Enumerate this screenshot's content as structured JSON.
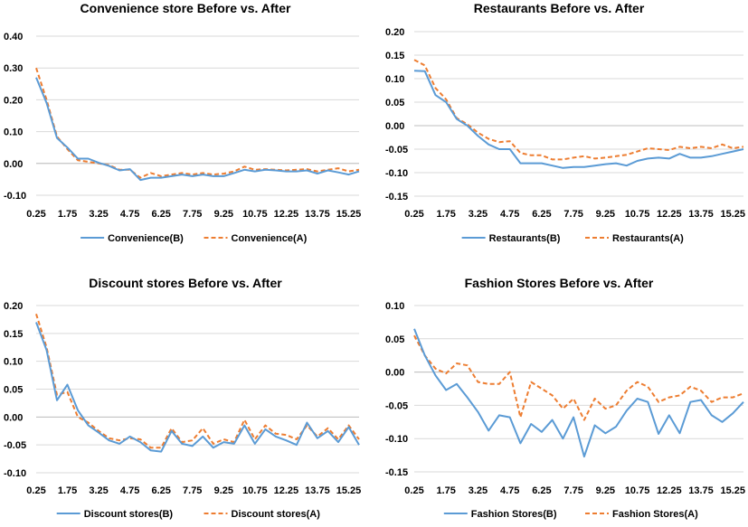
{
  "colors": {
    "before": "#5B9BD5",
    "after": "#ED7D31",
    "grid": "#D9D9D9",
    "axis": "#BFBFBF",
    "text": "#000000"
  },
  "chart_data": [
    {
      "type": "line",
      "title": "Convenience store Before vs. After",
      "yticks": [
        "0.40",
        "0.30",
        "0.20",
        "0.10",
        "0.00",
        "-0.10"
      ],
      "ylim": [
        -0.1,
        0.4
      ],
      "x": [
        0.25,
        0.75,
        1.25,
        1.75,
        2.25,
        2.75,
        3.25,
        3.75,
        4.25,
        4.75,
        5.25,
        5.75,
        6.25,
        6.75,
        7.25,
        7.75,
        8.25,
        8.75,
        9.25,
        9.75,
        10.25,
        10.75,
        11.25,
        11.75,
        12.25,
        12.75,
        13.25,
        13.75,
        14.25,
        14.75,
        15.25,
        15.75
      ],
      "xticks": [
        "0.25",
        "1.75",
        "3.25",
        "4.75",
        "6.25",
        "7.75",
        "9.25",
        "10.75",
        "12.25",
        "13.75",
        "15.25"
      ],
      "series": [
        {
          "name": "Convenience(B)",
          "values": [
            0.27,
            0.19,
            0.08,
            0.05,
            0.015,
            0.015,
            0.002,
            -0.008,
            -0.022,
            -0.018,
            -0.052,
            -0.045,
            -0.045,
            -0.04,
            -0.035,
            -0.04,
            -0.035,
            -0.04,
            -0.04,
            -0.03,
            -0.02,
            -0.025,
            -0.02,
            -0.022,
            -0.025,
            -0.025,
            -0.022,
            -0.032,
            -0.022,
            -0.028,
            -0.035,
            -0.025
          ]
        },
        {
          "name": "Convenience(A)",
          "values": [
            0.3,
            0.2,
            0.085,
            0.045,
            0.01,
            0.005,
            0.0,
            -0.005,
            -0.02,
            -0.02,
            -0.045,
            -0.03,
            -0.04,
            -0.035,
            -0.03,
            -0.035,
            -0.03,
            -0.035,
            -0.032,
            -0.025,
            -0.01,
            -0.02,
            -0.018,
            -0.02,
            -0.022,
            -0.02,
            -0.018,
            -0.025,
            -0.02,
            -0.015,
            -0.025,
            -0.02
          ]
        }
      ]
    },
    {
      "type": "line",
      "title": "Restaurants Before vs. After",
      "yticks": [
        "0.20",
        "0.15",
        "0.10",
        "0.05",
        "0.00",
        "-0.05",
        "-0.10",
        "-0.15"
      ],
      "ylim": [
        -0.15,
        0.2
      ],
      "x": [
        0.25,
        0.75,
        1.25,
        1.75,
        2.25,
        2.75,
        3.25,
        3.75,
        4.25,
        4.75,
        5.25,
        5.75,
        6.25,
        6.75,
        7.25,
        7.75,
        8.25,
        8.75,
        9.25,
        9.75,
        10.25,
        10.75,
        11.25,
        11.75,
        12.25,
        12.75,
        13.25,
        13.75,
        14.25,
        14.75,
        15.25,
        15.75
      ],
      "xticks": [
        "0.25",
        "1.75",
        "3.25",
        "4.75",
        "6.25",
        "7.75",
        "9.25",
        "10.75",
        "12.25",
        "13.75",
        "15.25"
      ],
      "series": [
        {
          "name": "Restaurants(B)",
          "values": [
            0.117,
            0.116,
            0.065,
            0.05,
            0.014,
            0.0,
            -0.022,
            -0.04,
            -0.05,
            -0.05,
            -0.08,
            -0.08,
            -0.08,
            -0.085,
            -0.09,
            -0.088,
            -0.088,
            -0.085,
            -0.082,
            -0.08,
            -0.085,
            -0.075,
            -0.07,
            -0.068,
            -0.07,
            -0.06,
            -0.068,
            -0.068,
            -0.065,
            -0.06,
            -0.055,
            -0.05
          ]
        },
        {
          "name": "Restaurants(A)",
          "values": [
            0.14,
            0.128,
            0.08,
            0.056,
            0.016,
            0.003,
            -0.015,
            -0.028,
            -0.035,
            -0.033,
            -0.058,
            -0.063,
            -0.063,
            -0.072,
            -0.072,
            -0.068,
            -0.065,
            -0.07,
            -0.068,
            -0.065,
            -0.062,
            -0.055,
            -0.048,
            -0.05,
            -0.052,
            -0.045,
            -0.048,
            -0.045,
            -0.048,
            -0.04,
            -0.048,
            -0.045
          ]
        }
      ]
    },
    {
      "type": "line",
      "title": "Discount stores Before vs. After",
      "yticks": [
        "0.20",
        "0.15",
        "0.10",
        "0.05",
        "0.00",
        "-0.05",
        "-0.10"
      ],
      "ylim": [
        -0.1,
        0.2
      ],
      "x": [
        0.25,
        0.75,
        1.25,
        1.75,
        2.25,
        2.75,
        3.25,
        3.75,
        4.25,
        4.75,
        5.25,
        5.75,
        6.25,
        6.75,
        7.25,
        7.75,
        8.25,
        8.75,
        9.25,
        9.75,
        10.25,
        10.75,
        11.25,
        11.75,
        12.25,
        12.75,
        13.25,
        13.75,
        14.25,
        14.75,
        15.25,
        15.75
      ],
      "xticks": [
        "0.25",
        "1.75",
        "3.25",
        "4.75",
        "6.25",
        "7.75",
        "9.25",
        "10.75",
        "12.25",
        "13.75",
        "15.25"
      ],
      "series": [
        {
          "name": "Discount stores(B)",
          "values": [
            0.17,
            0.12,
            0.03,
            0.058,
            0.012,
            -0.015,
            -0.028,
            -0.042,
            -0.048,
            -0.035,
            -0.045,
            -0.06,
            -0.062,
            -0.025,
            -0.048,
            -0.052,
            -0.035,
            -0.055,
            -0.045,
            -0.048,
            -0.015,
            -0.048,
            -0.022,
            -0.035,
            -0.042,
            -0.05,
            -0.01,
            -0.038,
            -0.025,
            -0.045,
            -0.018,
            -0.05
          ]
        },
        {
          "name": "Discount stores(A)",
          "values": [
            0.185,
            0.125,
            0.04,
            0.045,
            0.0,
            -0.01,
            -0.025,
            -0.038,
            -0.042,
            -0.038,
            -0.04,
            -0.055,
            -0.055,
            -0.02,
            -0.045,
            -0.042,
            -0.02,
            -0.048,
            -0.04,
            -0.045,
            -0.005,
            -0.04,
            -0.015,
            -0.03,
            -0.032,
            -0.04,
            -0.015,
            -0.035,
            -0.02,
            -0.04,
            -0.015,
            -0.04
          ]
        }
      ]
    },
    {
      "type": "line",
      "title": "Fashion Stores Before vs. After",
      "yticks": [
        "0.10",
        "0.05",
        "0.00",
        "-0.05",
        "-0.10",
        "-0.15"
      ],
      "ylim": [
        -0.15,
        0.1
      ],
      "x": [
        0.25,
        0.75,
        1.25,
        1.75,
        2.25,
        2.75,
        3.25,
        3.75,
        4.25,
        4.75,
        5.25,
        5.75,
        6.25,
        6.75,
        7.25,
        7.75,
        8.25,
        8.75,
        9.25,
        9.75,
        10.25,
        10.75,
        11.25,
        11.75,
        12.25,
        12.75,
        13.25,
        13.75,
        14.25,
        14.75,
        15.25,
        15.75
      ],
      "xticks": [
        "0.25",
        "1.75",
        "3.25",
        "4.75",
        "6.25",
        "7.75",
        "9.25",
        "10.75",
        "12.25",
        "13.75",
        "15.25"
      ],
      "series": [
        {
          "name": "Fashion Stores(B)",
          "values": [
            0.065,
            0.025,
            -0.005,
            -0.027,
            -0.018,
            -0.038,
            -0.06,
            -0.088,
            -0.065,
            -0.068,
            -0.107,
            -0.078,
            -0.09,
            -0.072,
            -0.1,
            -0.068,
            -0.127,
            -0.08,
            -0.092,
            -0.082,
            -0.058,
            -0.04,
            -0.045,
            -0.093,
            -0.065,
            -0.092,
            -0.045,
            -0.042,
            -0.065,
            -0.075,
            -0.062,
            -0.045
          ]
        },
        {
          "name": "Fashion Stores(A)",
          "values": [
            0.055,
            0.025,
            0.005,
            -0.002,
            0.013,
            0.01,
            -0.015,
            -0.018,
            -0.018,
            0.0,
            -0.068,
            -0.015,
            -0.025,
            -0.035,
            -0.055,
            -0.04,
            -0.072,
            -0.04,
            -0.055,
            -0.05,
            -0.028,
            -0.015,
            -0.022,
            -0.045,
            -0.038,
            -0.035,
            -0.022,
            -0.028,
            -0.045,
            -0.038,
            -0.038,
            -0.032
          ]
        }
      ]
    }
  ]
}
